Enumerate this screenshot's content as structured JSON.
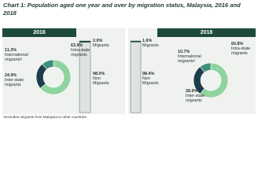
{
  "title": "Chart 1:  Population aged one year and over by migration status, Malaysia, 2016 and 2018",
  "footnote": "¹Excludes migrants from Malaysia to other countries.",
  "chart_data": [
    {
      "type": "pie",
      "title": "2016",
      "categories": [
        "Intra-state migrants",
        "Inter-state migrants",
        "International migrants¹"
      ],
      "values": [
        63.9,
        24.9,
        11.3
      ],
      "value_labels": [
        "63.9%",
        "24.9%",
        "11.3%"
      ],
      "colors": [
        "#8fd3a0",
        "#1d3d4c",
        "#3f8f7d"
      ]
    },
    {
      "type": "bar",
      "categories": [
        "Migrants",
        "Non Migrants"
      ],
      "values": [
        2.0,
        98.0
      ],
      "value_labels": [
        "2.0%",
        "98.0%"
      ],
      "colors": [
        "#1e4a3c",
        "#dfe3df"
      ]
    },
    {
      "type": "bar",
      "categories": [
        "Migrants",
        "Non Migrants"
      ],
      "values": [
        1.6,
        98.4
      ],
      "value_labels": [
        "1.6%",
        "98.4%"
      ],
      "colors": [
        "#1e4a3c",
        "#dfe3df"
      ]
    },
    {
      "type": "pie",
      "title": "2018",
      "categories": [
        "Intra-state migrants",
        "Inter-state migrants",
        "International migrants¹"
      ],
      "values": [
        60.8,
        28.9,
        10.7
      ],
      "value_labels": [
        "60.8%",
        "28.9%",
        "10.7%"
      ],
      "colors": [
        "#8fd3a0",
        "#1d3d4c",
        "#3f8f7d"
      ]
    }
  ]
}
